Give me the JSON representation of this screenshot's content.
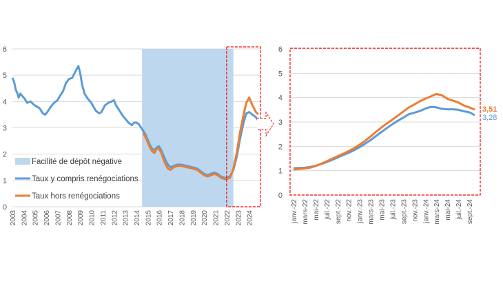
{
  "chart_data": [
    {
      "type": "line",
      "title": "",
      "xlabel": "",
      "ylabel": "",
      "ylim": [
        0,
        6
      ],
      "yticks": [
        "0",
        "1",
        "2",
        "3",
        "4",
        "5",
        "6"
      ],
      "xticks": [
        "2003",
        "2004",
        "2005",
        "2006",
        "2007",
        "2008",
        "2009",
        "2010",
        "2011",
        "2012",
        "2013",
        "2014",
        "2015",
        "2016",
        "2017",
        "2018",
        "2019",
        "2020",
        "2021",
        "2022",
        "2023",
        "2024"
      ],
      "xlim": [
        2003,
        2025
      ],
      "grid": "horizontal",
      "shaded_region": {
        "label": "Facilité de dépôt négative",
        "x_start": 2014.5,
        "x_end": 2022.6,
        "color": "#bdd7ee"
      },
      "highlight_box": {
        "x_start": 2022.0,
        "x_end": 2025.0,
        "color": "#ff0000"
      },
      "legend": {
        "placement": "bottom-left",
        "entries": [
          "Facilité de dépôt négative",
          "Taux y compris renégociations",
          "Taux hors renégociations"
        ]
      },
      "series": [
        {
          "name": "Taux y compris renégociations",
          "color": "#5b9bd5",
          "points": [
            [
              2003.0,
              4.9
            ],
            [
              2003.15,
              4.75
            ],
            [
              2003.3,
              4.45
            ],
            [
              2003.45,
              4.3
            ],
            [
              2003.55,
              4.15
            ],
            [
              2003.7,
              4.3
            ],
            [
              2003.9,
              4.2
            ],
            [
              2004.1,
              4.1
            ],
            [
              2004.3,
              3.95
            ],
            [
              2004.6,
              4.0
            ],
            [
              2005.0,
              3.85
            ],
            [
              2005.4,
              3.75
            ],
            [
              2005.7,
              3.55
            ],
            [
              2005.9,
              3.5
            ],
            [
              2006.1,
              3.6
            ],
            [
              2006.4,
              3.8
            ],
            [
              2006.7,
              3.95
            ],
            [
              2007.0,
              4.05
            ],
            [
              2007.2,
              4.2
            ],
            [
              2007.5,
              4.4
            ],
            [
              2007.75,
              4.7
            ],
            [
              2008.0,
              4.85
            ],
            [
              2008.3,
              4.9
            ],
            [
              2008.6,
              5.15
            ],
            [
              2008.85,
              5.35
            ],
            [
              2009.0,
              5.1
            ],
            [
              2009.2,
              4.6
            ],
            [
              2009.4,
              4.3
            ],
            [
              2009.7,
              4.1
            ],
            [
              2010.0,
              3.95
            ],
            [
              2010.2,
              3.8
            ],
            [
              2010.4,
              3.65
            ],
            [
              2010.7,
              3.55
            ],
            [
              2010.9,
              3.6
            ],
            [
              2011.2,
              3.85
            ],
            [
              2011.5,
              3.95
            ],
            [
              2011.8,
              4.0
            ],
            [
              2012.0,
              4.05
            ],
            [
              2012.2,
              3.85
            ],
            [
              2012.5,
              3.65
            ],
            [
              2012.8,
              3.45
            ],
            [
              2013.0,
              3.35
            ],
            [
              2013.3,
              3.2
            ],
            [
              2013.6,
              3.1
            ],
            [
              2013.8,
              3.2
            ],
            [
              2014.0,
              3.2
            ],
            [
              2014.2,
              3.15
            ],
            [
              2014.5,
              2.95
            ],
            [
              2014.8,
              2.75
            ],
            [
              2015.0,
              2.55
            ],
            [
              2015.2,
              2.35
            ],
            [
              2015.4,
              2.2
            ],
            [
              2015.6,
              2.15
            ],
            [
              2015.8,
              2.25
            ],
            [
              2016.0,
              2.3
            ],
            [
              2016.2,
              2.15
            ],
            [
              2016.4,
              1.95
            ],
            [
              2016.6,
              1.75
            ],
            [
              2016.8,
              1.6
            ],
            [
              2017.0,
              1.5
            ],
            [
              2017.3,
              1.55
            ],
            [
              2017.6,
              1.6
            ],
            [
              2018.0,
              1.6
            ],
            [
              2018.5,
              1.55
            ],
            [
              2019.0,
              1.5
            ],
            [
              2019.4,
              1.45
            ],
            [
              2019.7,
              1.35
            ],
            [
              2020.0,
              1.25
            ],
            [
              2020.3,
              1.2
            ],
            [
              2020.6,
              1.25
            ],
            [
              2020.9,
              1.3
            ],
            [
              2021.2,
              1.25
            ],
            [
              2021.5,
              1.15
            ],
            [
              2021.8,
              1.1
            ],
            [
              2022.0,
              1.1
            ],
            [
              2022.3,
              1.15
            ],
            [
              2022.6,
              1.4
            ],
            [
              2022.9,
              1.9
            ],
            [
              2023.2,
              2.6
            ],
            [
              2023.5,
              3.2
            ],
            [
              2023.75,
              3.55
            ],
            [
              2024.0,
              3.6
            ],
            [
              2024.3,
              3.5
            ],
            [
              2024.6,
              3.4
            ],
            [
              2024.8,
              3.28
            ]
          ]
        },
        {
          "name": "Taux hors renégociations",
          "color": "#ed7d31",
          "points": [
            [
              2014.6,
              2.8
            ],
            [
              2014.8,
              2.65
            ],
            [
              2015.0,
              2.45
            ],
            [
              2015.2,
              2.25
            ],
            [
              2015.4,
              2.1
            ],
            [
              2015.6,
              2.05
            ],
            [
              2015.8,
              2.2
            ],
            [
              2016.0,
              2.2
            ],
            [
              2016.2,
              2.05
            ],
            [
              2016.4,
              1.8
            ],
            [
              2016.6,
              1.6
            ],
            [
              2016.8,
              1.45
            ],
            [
              2017.0,
              1.4
            ],
            [
              2017.3,
              1.5
            ],
            [
              2017.6,
              1.55
            ],
            [
              2018.0,
              1.55
            ],
            [
              2018.5,
              1.5
            ],
            [
              2019.0,
              1.45
            ],
            [
              2019.4,
              1.4
            ],
            [
              2019.7,
              1.3
            ],
            [
              2020.0,
              1.2
            ],
            [
              2020.3,
              1.15
            ],
            [
              2020.6,
              1.2
            ],
            [
              2020.9,
              1.25
            ],
            [
              2021.2,
              1.2
            ],
            [
              2021.5,
              1.1
            ],
            [
              2021.8,
              1.05
            ],
            [
              2022.0,
              1.05
            ],
            [
              2022.3,
              1.1
            ],
            [
              2022.6,
              1.45
            ],
            [
              2022.9,
              2.05
            ],
            [
              2023.2,
              2.85
            ],
            [
              2023.5,
              3.5
            ],
            [
              2023.75,
              3.95
            ],
            [
              2024.0,
              4.15
            ],
            [
              2024.3,
              3.85
            ],
            [
              2024.6,
              3.6
            ],
            [
              2024.8,
              3.51
            ]
          ]
        }
      ]
    },
    {
      "type": "line",
      "title": "",
      "xlabel": "",
      "ylabel": "",
      "ylim": [
        0,
        6
      ],
      "yticks": [
        "0",
        "1",
        "2",
        "3",
        "4",
        "5",
        "6"
      ],
      "xticks": [
        "janv.-22",
        "mars-22",
        "mai-22",
        "juil.-22",
        "sept.-22",
        "nov.-22",
        "janv.-23",
        "mars-23",
        "mai-23",
        "juil.-23",
        "sept.-23",
        "nov.-23",
        "janv.-24",
        "mars-24",
        "mai-24",
        "juil.-24",
        "sept.-24"
      ],
      "xlim": [
        0,
        33
      ],
      "grid": "horizontal",
      "end_labels": [
        {
          "text": "3,51",
          "color": "#ed7d31"
        },
        {
          "text": "3,28",
          "color": "#5b9bd5"
        }
      ],
      "series": [
        {
          "name": "Taux y compris renégociations",
          "color": "#5b9bd5",
          "values": [
            1.1,
            1.11,
            1.12,
            1.15,
            1.2,
            1.27,
            1.35,
            1.44,
            1.54,
            1.64,
            1.73,
            1.84,
            1.96,
            2.1,
            2.25,
            2.42,
            2.59,
            2.75,
            2.91,
            3.05,
            3.18,
            3.32,
            3.38,
            3.45,
            3.55,
            3.62,
            3.6,
            3.54,
            3.52,
            3.52,
            3.5,
            3.44,
            3.4,
            3.28
          ]
        },
        {
          "name": "Taux hors renégociations",
          "color": "#ed7d31",
          "values": [
            1.05,
            1.07,
            1.09,
            1.12,
            1.19,
            1.28,
            1.38,
            1.49,
            1.59,
            1.69,
            1.8,
            1.92,
            2.06,
            2.22,
            2.4,
            2.59,
            2.77,
            2.94,
            3.1,
            3.26,
            3.43,
            3.6,
            3.72,
            3.85,
            3.96,
            4.05,
            4.15,
            4.1,
            3.95,
            3.88,
            3.8,
            3.68,
            3.6,
            3.51
          ]
        }
      ]
    }
  ]
}
